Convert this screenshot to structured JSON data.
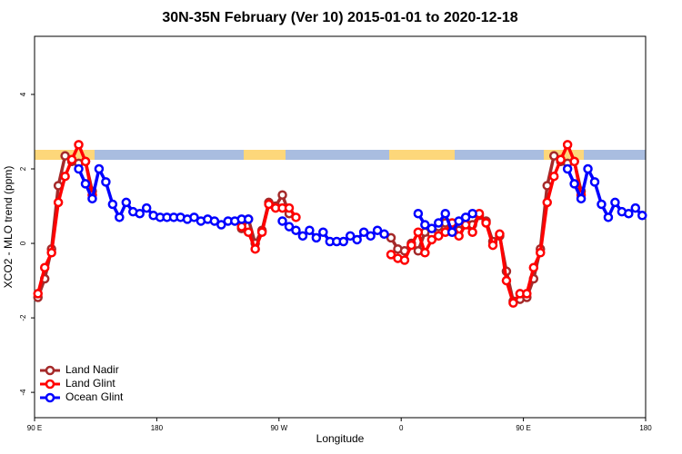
{
  "chart_data": {
    "type": "line",
    "title": "30N-35N February (Ver 10)   2015-01-01 to 2020-12-18",
    "x_label": "Longitude",
    "y_label": "XCO2 - MLO trend (ppm)",
    "xlim": [
      90,
      540
    ],
    "xticks": [
      {
        "value": 90,
        "label": "90 E"
      },
      {
        "value": 180,
        "label": "180"
      },
      {
        "value": 270,
        "label": "90 W"
      },
      {
        "value": 360,
        "label": "0"
      },
      {
        "value": 450,
        "label": "90 E"
      },
      {
        "value": 540,
        "label": "180"
      }
    ],
    "ylim": [
      -4.68,
      5.56
    ],
    "yticks": [
      -4,
      -2,
      0,
      2,
      4
    ],
    "legend": "bottom-left",
    "x": [
      92.5,
      97.5,
      102.5,
      107.5,
      112.5,
      117.5,
      122.5,
      127.5,
      132.5,
      137.5,
      142.5,
      147.5,
      152.5,
      157.5,
      162.5,
      167.5,
      172.5,
      177.5,
      182.5,
      187.5,
      192.5,
      197.5,
      202.5,
      207.5,
      212.5,
      217.5,
      222.5,
      227.5,
      232.5,
      237.5,
      242.5,
      247.5,
      252.5,
      257.5,
      262.5,
      267.5,
      272.5,
      277.5,
      282.5,
      287.5,
      292.5,
      297.5,
      302.5,
      307.5,
      312.5,
      317.5,
      322.5,
      327.5,
      332.5,
      337.5,
      342.5,
      347.5,
      352.5,
      357.5,
      362.5,
      367.5,
      372.5,
      377.5,
      382.5,
      387.5,
      392.5,
      397.5,
      402.5,
      407.5,
      412.5,
      417.5,
      422.5,
      427.5,
      432.5,
      437.5,
      442.5,
      447.5,
      452.5,
      457.5,
      462.5,
      467.5,
      472.5,
      477.5,
      482.5,
      487.5,
      492.5,
      497.5,
      502.5,
      507.5,
      512.5,
      517.5,
      522.5,
      527.5,
      532.5,
      537.5
    ],
    "series": [
      {
        "name": "Land Nadir",
        "color": "#a52a2a",
        "values": [
          -1.45,
          -0.95,
          -0.15,
          1.55,
          2.35,
          2.2,
          2.15,
          2.2,
          1.4,
          null,
          null,
          null,
          null,
          null,
          null,
          null,
          null,
          null,
          null,
          null,
          null,
          null,
          null,
          null,
          null,
          null,
          null,
          null,
          null,
          null,
          0.4,
          0.65,
          0.0,
          0.35,
          1.1,
          1.0,
          1.3,
          0.8,
          null,
          null,
          null,
          null,
          null,
          null,
          null,
          null,
          null,
          null,
          null,
          null,
          null,
          null,
          0.15,
          -0.15,
          -0.2,
          0.0,
          -0.2,
          0.3,
          0.25,
          0.45,
          0.55,
          0.45,
          0.35,
          0.55,
          0.5,
          0.75,
          0.6,
          0.05,
          0.2,
          -0.75,
          -1.55,
          -1.5,
          -1.45,
          -0.95,
          -0.15,
          1.55,
          2.35,
          2.2,
          2.15,
          2.2,
          1.4,
          null,
          null,
          null,
          null,
          null,
          null,
          null,
          null,
          null
        ]
      },
      {
        "name": "Land Glint",
        "color": "#ff0000",
        "values": [
          -1.35,
          -0.65,
          -0.25,
          1.1,
          1.8,
          2.25,
          2.65,
          2.2,
          1.3,
          null,
          null,
          null,
          null,
          null,
          null,
          null,
          null,
          null,
          null,
          null,
          null,
          null,
          null,
          null,
          null,
          null,
          null,
          null,
          null,
          null,
          0.45,
          0.3,
          -0.15,
          0.3,
          1.05,
          0.95,
          0.95,
          0.95,
          0.7,
          null,
          null,
          null,
          null,
          null,
          null,
          null,
          null,
          null,
          null,
          null,
          null,
          null,
          -0.3,
          -0.4,
          -0.45,
          -0.05,
          0.3,
          -0.25,
          0.1,
          0.2,
          0.3,
          0.55,
          0.2,
          0.5,
          0.3,
          0.8,
          0.55,
          -0.05,
          0.25,
          -1.0,
          -1.6,
          -1.35,
          -1.35,
          -0.65,
          -0.25,
          1.1,
          1.8,
          2.25,
          2.65,
          2.2,
          1.3,
          null,
          null,
          null,
          null,
          null,
          null,
          null,
          null,
          null
        ]
      },
      {
        "name": "Ocean Glint",
        "color": "#0000ff",
        "values": [
          null,
          null,
          null,
          null,
          null,
          null,
          2.0,
          1.6,
          1.2,
          2.0,
          1.65,
          1.05,
          0.7,
          1.1,
          0.85,
          0.8,
          0.95,
          0.75,
          0.7,
          0.7,
          0.7,
          0.7,
          0.65,
          0.7,
          0.6,
          0.65,
          0.6,
          0.5,
          0.6,
          0.6,
          0.65,
          0.65,
          null,
          null,
          null,
          null,
          0.6,
          0.45,
          0.35,
          0.2,
          0.35,
          0.15,
          0.3,
          0.05,
          0.05,
          0.05,
          0.2,
          0.1,
          0.3,
          0.2,
          0.35,
          0.25,
          null,
          null,
          null,
          null,
          0.8,
          0.5,
          0.4,
          0.55,
          0.8,
          0.3,
          0.6,
          0.7,
          0.8,
          null,
          null,
          null,
          null,
          null,
          null,
          null,
          null,
          null,
          null,
          null,
          null,
          null,
          2.0,
          1.6,
          1.2,
          2.0,
          1.65,
          1.05,
          0.7,
          1.1,
          0.85,
          0.8,
          0.95,
          0.75
        ]
      }
    ]
  }
}
